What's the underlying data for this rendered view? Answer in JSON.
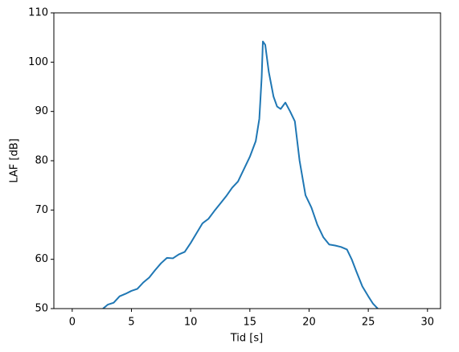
{
  "chart_data": {
    "type": "line",
    "xlabel": "Tid [s]",
    "ylabel": "LAF [dB]",
    "x": [
      2.6,
      3.0,
      3.5,
      4.0,
      4.5,
      5.0,
      5.5,
      6.0,
      6.5,
      7.0,
      7.5,
      8.0,
      8.5,
      9.0,
      9.5,
      10.0,
      10.5,
      11.0,
      11.5,
      12.0,
      12.5,
      13.0,
      13.5,
      14.0,
      14.5,
      15.0,
      15.5,
      15.8,
      16.0,
      16.1,
      16.3,
      16.6,
      17.0,
      17.3,
      17.6,
      18.0,
      18.4,
      18.8,
      19.2,
      19.7,
      20.2,
      20.7,
      21.2,
      21.7,
      22.2,
      22.7,
      23.2,
      23.6,
      24.0,
      24.5,
      25.0,
      25.4,
      25.8
    ],
    "series": [
      {
        "color": "#1f77b4",
        "values": [
          50.0,
          50.8,
          51.2,
          52.5,
          53.0,
          53.6,
          54.0,
          55.3,
          56.3,
          57.8,
          59.2,
          60.3,
          60.2,
          61.0,
          61.5,
          63.3,
          65.3,
          67.3,
          68.2,
          69.8,
          71.3,
          72.8,
          74.5,
          75.8,
          78.3,
          80.8,
          84.0,
          88.5,
          97.0,
          104.2,
          103.5,
          98.0,
          93.0,
          91.0,
          90.5,
          91.8,
          90.0,
          88.0,
          80.0,
          73.0,
          70.5,
          67.0,
          64.5,
          63.0,
          62.8,
          62.5,
          62.0,
          60.0,
          57.5,
          54.5,
          52.5,
          51.0,
          50.0
        ]
      }
    ],
    "xlim": [
      -1.55,
      31.1
    ],
    "ylim": [
      50,
      110
    ],
    "xticks": [
      0,
      5,
      10,
      15,
      20,
      25,
      30
    ],
    "yticks": [
      50,
      60,
      70,
      80,
      90,
      100,
      110
    ]
  }
}
